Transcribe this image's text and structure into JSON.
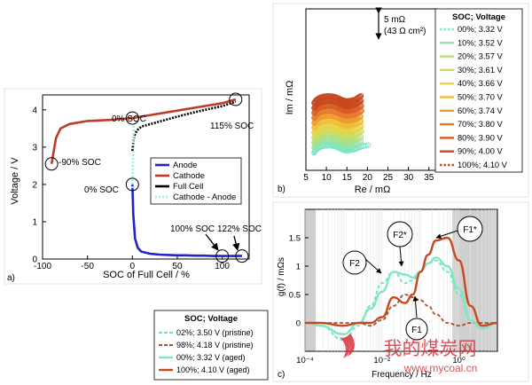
{
  "colors": {
    "anode": "#2323c8",
    "cathode": "#c03a28",
    "full_cell": "#000000",
    "cathode_anode": "#9ff0d8",
    "soc_gradient": [
      "#7fe6c6",
      "#96e3a6",
      "#b3df7e",
      "#cfdb5e",
      "#e7d447",
      "#f0bd3a",
      "#ef9b32",
      "#e67a2c",
      "#d85c27",
      "#c8481f"
    ],
    "grey_band": "#cfcfcf",
    "pristine_02": "#6ee3c4",
    "pristine_98": "#a0522d",
    "aged_00": "#7fe6c6",
    "aged_100": "#c8481f",
    "watermark": "#d9323a"
  },
  "panel_a": {
    "label": "a)",
    "ylabel": "Voltage / V",
    "xlabel": "SOC of Full Cell / %",
    "legend": [
      "Anode",
      "Cathode",
      "Full Cell",
      "Cathode - Anode"
    ],
    "annotations": {
      "soc_0_top": "0% SOC",
      "soc_115": "115% SOC",
      "soc_m90": "-90% SOC",
      "soc_0_bottom": "0% SOC",
      "soc_100": "100% SOC",
      "soc_122": "122% SOC"
    }
  },
  "panel_b": {
    "label": "b)",
    "ylabel": "Im / mΩ",
    "xlabel": "Re / mΩ",
    "scale_line1": "5 mΩ",
    "scale_line2": "(43 Ω cm²)",
    "legend_title": "SOC; Voltage",
    "legend": [
      "00%; 3.32 V",
      "10%; 3.52 V",
      "20%; 3.57 V",
      "30%; 3.61 V",
      "40%; 3.66 V",
      "50%; 3.70 V",
      "60%; 3.74 V",
      "70%; 3.80 V",
      "80%; 3.90 V",
      "90%; 4.00 V",
      "100%; 4.10 V"
    ]
  },
  "panel_c": {
    "label": "c)",
    "ylabel": "g(f) / mΩs",
    "xlabel": "Frequency / Hz",
    "peaks": [
      "F1",
      "F2",
      "F1*",
      "F2*"
    ],
    "legend_title": "SOC; Voltage",
    "legend": [
      "02%; 3.50 V (pristine)",
      "98%; 4.18 V (pristine)",
      "00%; 3.32 V (aged)",
      "100%; 4.10 V (aged)"
    ]
  },
  "watermark": {
    "text": "我的煤炭网",
    "url": "www.mycoal.cn"
  },
  "chart_data": [
    {
      "type": "line",
      "title": "",
      "xlabel": "SOC of Full Cell / %",
      "ylabel": "Voltage / V",
      "xlim": [
        -100,
        130
      ],
      "ylim": [
        0,
        4.4
      ],
      "xticks": [
        -100,
        -50,
        0,
        50,
        100
      ],
      "yticks": [
        0,
        1,
        2,
        3,
        4
      ],
      "grid": false,
      "legend_position": "center",
      "series": [
        {
          "name": "Anode",
          "x": [
            0,
            1,
            3,
            6,
            10,
            20,
            30,
            40,
            50,
            60,
            70,
            80,
            90,
            100,
            110,
            122
          ],
          "y": [
            2.0,
            1.2,
            0.55,
            0.3,
            0.2,
            0.14,
            0.12,
            0.11,
            0.1,
            0.1,
            0.09,
            0.09,
            0.08,
            0.08,
            0.08,
            0.08
          ]
        },
        {
          "name": "Cathode",
          "x": [
            -90,
            -85,
            -80,
            -70,
            -50,
            -25,
            0,
            25,
            50,
            75,
            100,
            115
          ],
          "y": [
            2.55,
            3.25,
            3.5,
            3.62,
            3.7,
            3.73,
            3.78,
            3.88,
            3.98,
            4.08,
            4.18,
            4.28
          ]
        },
        {
          "name": "Full Cell",
          "x": [
            0,
            2,
            5,
            10,
            25,
            50,
            75,
            100,
            115
          ],
          "y": [
            2.9,
            3.3,
            3.45,
            3.55,
            3.65,
            3.82,
            3.97,
            4.1,
            4.22
          ]
        },
        {
          "name": "Cathode - Anode",
          "x": [
            0,
            0.5,
            1,
            1.5
          ],
          "y": [
            1.9,
            2.5,
            3.0,
            3.6
          ]
        }
      ]
    },
    {
      "type": "scatter",
      "title": "",
      "xlabel": "Re / mΩ",
      "ylabel": "Im / mΩ",
      "xlim": [
        5,
        37
      ],
      "xticks": [
        5,
        10,
        15,
        20,
        25,
        30,
        35
      ],
      "legend_position": "right",
      "series_names": [
        "00%; 3.32 V",
        "10%; 3.52 V",
        "20%; 3.57 V",
        "30%; 3.61 V",
        "40%; 3.66 V",
        "50%; 3.70 V",
        "60%; 3.74 V",
        "70%; 3.80 V",
        "80%; 3.90 V",
        "90%; 4.00 V",
        "100%; 4.10 V"
      ],
      "arc_x": [
        7.0,
        7.6,
        8.5,
        9.5,
        10.8,
        12.0,
        13.0,
        13.8,
        14.4,
        15.0,
        15.8,
        17.0,
        18.5,
        19.5
      ],
      "arc_y": [
        0.0,
        0.9,
        1.5,
        1.8,
        1.9,
        1.7,
        1.25,
        0.85,
        0.6,
        0.5,
        0.6,
        0.9,
        1.6,
        2.2
      ],
      "offset_step_mohm": 2.2
    },
    {
      "type": "line",
      "title": "",
      "xlabel": "Frequency / Hz",
      "ylabel": "g(f) / mΩs",
      "xscale": "log",
      "xlim": [
        0.0001,
        10
      ],
      "ylim": [
        -0.5,
        2.0
      ],
      "yticks": [
        0,
        0.5,
        1,
        1.5
      ],
      "xtick_labels": [
        "10⁻⁴",
        "10⁻²",
        "10⁰"
      ],
      "legend_position": "bottom-left (outside)",
      "series": [
        {
          "name": "02%; 3.50 V (pristine)",
          "x_log10": [
            -4,
            -3.6,
            -3.0,
            -2.6,
            -2.3,
            -2.0,
            -1.7,
            -1.4,
            -1.2,
            -1.0,
            -0.8,
            -0.6,
            -0.3,
            0,
            0.3,
            0.6,
            1.0
          ],
          "y": [
            0,
            -0.05,
            -0.3,
            -0.05,
            0.3,
            0.7,
            0.9,
            0.7,
            0.75,
            0.9,
            1.05,
            1.1,
            0.9,
            0.5,
            0.05,
            -0.1,
            0
          ]
        },
        {
          "name": "98%; 4.18 V (pristine)",
          "x_log10": [
            -4,
            -3.6,
            -3.0,
            -2.6,
            -2.3,
            -2.0,
            -1.7,
            -1.4,
            -1.2,
            -1.0,
            -0.8,
            -0.6,
            -0.3,
            0,
            0.3,
            0.6,
            1.0
          ],
          "y": [
            0,
            0,
            0,
            0,
            -0.05,
            0.05,
            0.3,
            0.5,
            0.45,
            0.4,
            0.3,
            0.15,
            0.0,
            -0.05,
            0,
            0,
            0
          ]
        },
        {
          "name": "00%; 3.32 V (aged)",
          "x_log10": [
            -4,
            -3.6,
            -3.0,
            -2.6,
            -2.3,
            -2.0,
            -1.7,
            -1.4,
            -1.2,
            -1.0,
            -0.8,
            -0.6,
            -0.3,
            0,
            0.3,
            0.6,
            1.0
          ],
          "y": [
            0,
            -0.05,
            -0.2,
            0.0,
            0.25,
            0.55,
            0.9,
            0.85,
            0.8,
            0.9,
            1.05,
            1.15,
            1.0,
            0.6,
            0.05,
            -0.1,
            0
          ]
        },
        {
          "name": "100%; 4.10 V (aged)",
          "x_log10": [
            -4,
            -3.6,
            -3.0,
            -2.6,
            -2.3,
            -2.0,
            -1.7,
            -1.4,
            -1.2,
            -1.0,
            -0.8,
            -0.6,
            -0.3,
            0,
            0.3,
            0.6,
            1.0
          ],
          "y": [
            0,
            0,
            -0.05,
            0,
            0.0,
            0.1,
            0.45,
            0.35,
            0.5,
            0.9,
            1.2,
            1.45,
            1.5,
            1.1,
            0.3,
            -0.05,
            0
          ]
        }
      ]
    }
  ]
}
